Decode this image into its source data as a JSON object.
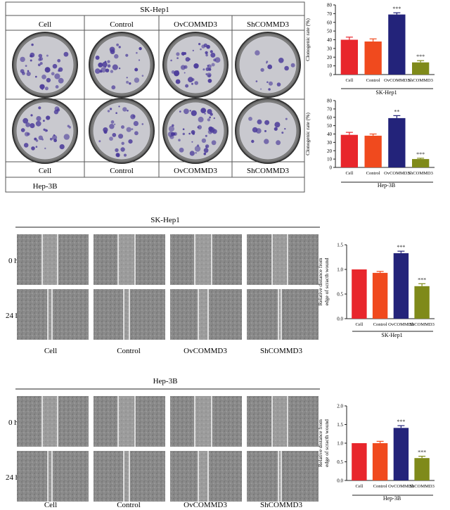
{
  "figure": {
    "panel_a": {
      "header": "SK-Hep1",
      "columns": [
        "Cell",
        "Control",
        "OvCOMMD3",
        "ShCOMMD3"
      ],
      "footer": "Hep-3B"
    },
    "panel_c": {
      "title": "SK-Hep1",
      "time_labels": [
        "0 h",
        "24 h"
      ],
      "columns": [
        "Cell",
        "Control",
        "OvCOMMD3",
        "ShCOMMD3"
      ]
    },
    "panel_d": {
      "title": "Hep-3B",
      "time_labels": [
        "0 h",
        "24 h"
      ],
      "columns": [
        "Cell",
        "Control",
        "OvCOMMD3",
        "ShCOMMD3"
      ]
    }
  },
  "colors": {
    "Cell": "#e8262c",
    "Control": "#f04a1e",
    "OvCOMMD3": "#23237a",
    "ShCOMMD3": "#7f8a1a",
    "stain": "#4a3a9a"
  },
  "chart_data": [
    {
      "type": "bar",
      "categories": [
        "Cell",
        "Control",
        "OvCOMMD3",
        "ShCOMMD3"
      ],
      "values": [
        40,
        38,
        69,
        14
      ],
      "errors": [
        3,
        3,
        2,
        2
      ],
      "significance": [
        "",
        "",
        "***",
        "***"
      ],
      "ylabel": "Clonogenic rate (%)",
      "xlabel": "SK-Hep1",
      "ylim": [
        0,
        80
      ],
      "yticks": [
        0,
        10,
        20,
        30,
        40,
        50,
        60,
        70,
        80
      ]
    },
    {
      "type": "bar",
      "categories": [
        "Cell",
        "Control",
        "OvCOMMD3",
        "ShCOMMD3"
      ],
      "values": [
        39,
        38,
        59,
        10
      ],
      "errors": [
        3,
        2,
        3,
        1
      ],
      "significance": [
        "",
        "",
        "**",
        "***"
      ],
      "ylabel": "Clonogenic rate (%)",
      "xlabel": "Hep-3B",
      "ylim": [
        0,
        80
      ],
      "yticks": [
        0,
        10,
        20,
        30,
        40,
        50,
        60,
        70,
        80
      ]
    },
    {
      "type": "bar",
      "categories": [
        "Cell",
        "Control",
        "OvCOMMD3",
        "ShCOMMD3"
      ],
      "values": [
        1.0,
        0.93,
        1.33,
        0.66
      ],
      "errors": [
        0,
        0.03,
        0.04,
        0.05
      ],
      "significance": [
        "",
        "",
        "***",
        "***"
      ],
      "ylabel": "Relative distance from edge of scracth wound",
      "xlabel": "SK-Hep1",
      "ylim": [
        0,
        1.5
      ],
      "yticks": [
        "0.0",
        "0.5",
        "1.0",
        "1.5"
      ]
    },
    {
      "type": "bar",
      "categories": [
        "Cell",
        "Control",
        "OvCOMMD3",
        "ShCOMMD3"
      ],
      "values": [
        1.0,
        1.0,
        1.41,
        0.6
      ],
      "errors": [
        0,
        0.05,
        0.06,
        0.05
      ],
      "significance": [
        "",
        "",
        "***",
        "***"
      ],
      "ylabel": "Relative distance from edge of scracth wound",
      "xlabel": "Hep-3B",
      "ylim": [
        0,
        2.0
      ],
      "yticks": [
        "0.0",
        "0.5",
        "1.0",
        "1.5",
        "2.0"
      ]
    }
  ]
}
